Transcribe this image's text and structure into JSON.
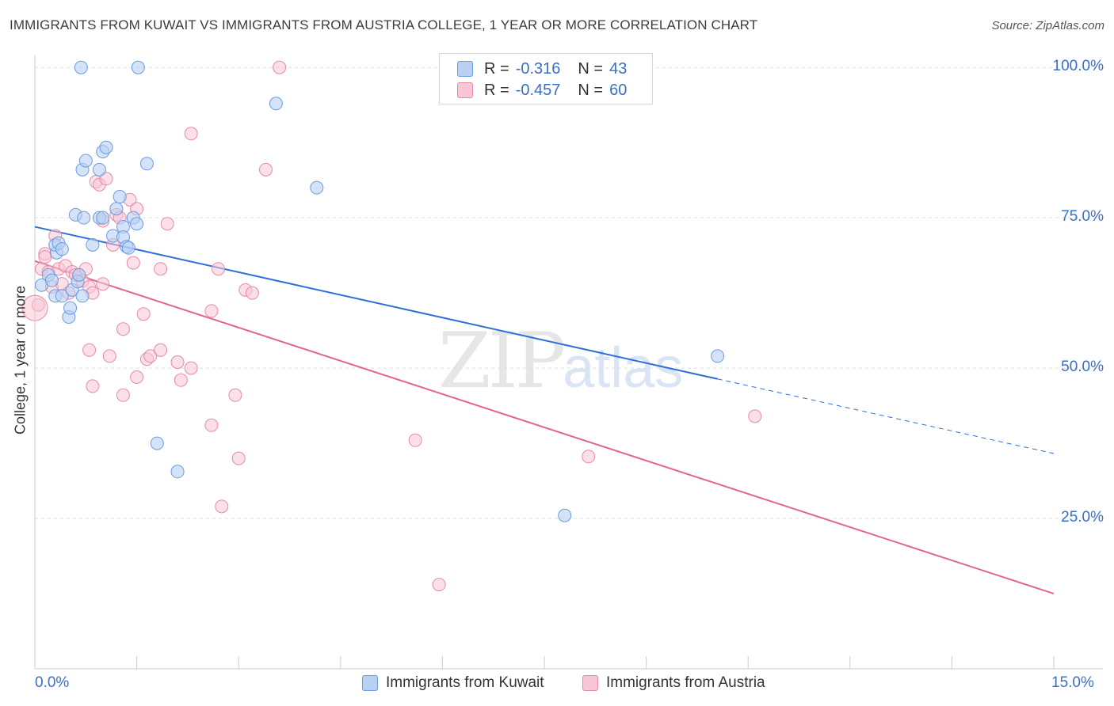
{
  "title": "IMMIGRANTS FROM KUWAIT VS IMMIGRANTS FROM AUSTRIA COLLEGE, 1 YEAR OR MORE CORRELATION CHART",
  "source": "Source: ZipAtlas.com",
  "watermark": {
    "zip": "ZIP",
    "atlas": "atlas"
  },
  "colors": {
    "kuwait_fill": "#b8d1f3",
    "kuwait_stroke": "#6b9be0",
    "kuwait_line": "#2e6fd6",
    "austria_fill": "#f8c6d6",
    "austria_stroke": "#e68aa9",
    "austria_line": "#e0668f",
    "tick_text": "#3a6fc4",
    "grid": "#dddddd"
  },
  "stats": [
    {
      "r_label": "R =",
      "r_value": "-0.316",
      "n_label": "N =",
      "n_value": "43"
    },
    {
      "r_label": "R =",
      "r_value": "-0.457",
      "n_label": "N =",
      "n_value": "60"
    }
  ],
  "legend": [
    "Immigrants from Kuwait",
    "Immigrants from Austria"
  ],
  "chart_data": {
    "type": "scatter",
    "title": "IMMIGRANTS FROM KUWAIT VS IMMIGRANTS FROM AUSTRIA COLLEGE, 1 YEAR OR MORE CORRELATION CHART",
    "xlabel": "",
    "ylabel": "College, 1 year or more",
    "xlim": [
      0,
      15
    ],
    "ylim": [
      0,
      102
    ],
    "x_tick_labels": [
      "0.0%",
      "15.0%"
    ],
    "y_ticks": [
      25,
      50,
      75,
      100
    ],
    "y_tick_labels": [
      "25.0%",
      "50.0%",
      "75.0%",
      "100.0%"
    ],
    "grid": true,
    "legend_position": "bottom-center",
    "series": [
      {
        "name": "Immigrants from Kuwait",
        "trend": {
          "x0": 0,
          "y0": 73.5,
          "x1": 10.05,
          "y1": 48.2,
          "dash_to_x": 15,
          "dash_to_y": 35.8
        },
        "points": [
          [
            0.1,
            63.8
          ],
          [
            0.2,
            65.5
          ],
          [
            0.25,
            64.6
          ],
          [
            0.3,
            62.0
          ],
          [
            0.32,
            69.2
          ],
          [
            0.3,
            70.5
          ],
          [
            0.35,
            70.8
          ],
          [
            0.4,
            69.8
          ],
          [
            0.4,
            62.0
          ],
          [
            0.5,
            58.5
          ],
          [
            0.52,
            60.0
          ],
          [
            0.55,
            63.0
          ],
          [
            0.6,
            75.5
          ],
          [
            0.63,
            64.4
          ],
          [
            0.7,
            62.0
          ],
          [
            0.65,
            65.5
          ],
          [
            0.7,
            83.0
          ],
          [
            0.72,
            75.0
          ],
          [
            0.75,
            84.5
          ],
          [
            0.85,
            70.5
          ],
          [
            0.95,
            83.0
          ],
          [
            0.95,
            75.0
          ],
          [
            1.0,
            86.0
          ],
          [
            1.05,
            86.7
          ],
          [
            1.15,
            72.0
          ],
          [
            1.2,
            76.5
          ],
          [
            1.25,
            78.5
          ],
          [
            1.3,
            73.5
          ],
          [
            1.3,
            71.8
          ],
          [
            1.35,
            70.2
          ],
          [
            1.38,
            70.0
          ],
          [
            1.45,
            75.0
          ],
          [
            1.5,
            74.0
          ],
          [
            1.65,
            84.0
          ],
          [
            1.8,
            37.5
          ],
          [
            2.1,
            32.8
          ],
          [
            0.68,
            100.0
          ],
          [
            1.52,
            100.0
          ],
          [
            3.55,
            94.0
          ],
          [
            4.15,
            80.0
          ],
          [
            10.05,
            52.0
          ],
          [
            7.8,
            25.5
          ],
          [
            1.0,
            75.0
          ]
        ]
      },
      {
        "name": "Immigrants from Austria",
        "trend": {
          "x0": 0,
          "y0": 67.8,
          "x1": 15,
          "y1": 12.5
        },
        "points": [
          [
            0.05,
            60.5
          ],
          [
            0.1,
            66.5
          ],
          [
            0.15,
            69.0
          ],
          [
            0.2,
            66.0
          ],
          [
            0.25,
            63.5
          ],
          [
            0.3,
            72.0
          ],
          [
            0.35,
            66.5
          ],
          [
            0.4,
            64.0
          ],
          [
            0.45,
            67.0
          ],
          [
            0.5,
            62.5
          ],
          [
            0.55,
            66.0
          ],
          [
            0.6,
            65.5
          ],
          [
            0.65,
            65.5
          ],
          [
            0.7,
            64.5
          ],
          [
            0.75,
            66.5
          ],
          [
            0.8,
            63.5
          ],
          [
            0.85,
            62.5
          ],
          [
            0.8,
            53.0
          ],
          [
            0.85,
            47.0
          ],
          [
            0.9,
            81.0
          ],
          [
            0.95,
            80.5
          ],
          [
            1.05,
            81.5
          ],
          [
            1.0,
            74.5
          ],
          [
            1.0,
            64.0
          ],
          [
            1.1,
            52.0
          ],
          [
            1.15,
            70.5
          ],
          [
            1.2,
            75.5
          ],
          [
            1.25,
            75.0
          ],
          [
            1.3,
            56.5
          ],
          [
            1.3,
            45.5
          ],
          [
            1.4,
            78.0
          ],
          [
            1.45,
            67.5
          ],
          [
            1.5,
            76.5
          ],
          [
            1.5,
            48.5
          ],
          [
            1.6,
            59.0
          ],
          [
            1.65,
            51.5
          ],
          [
            1.7,
            52.0
          ],
          [
            1.85,
            66.5
          ],
          [
            1.85,
            53.0
          ],
          [
            1.95,
            74.0
          ],
          [
            2.1,
            51.0
          ],
          [
            2.15,
            48.0
          ],
          [
            2.3,
            50.0
          ],
          [
            2.3,
            89.0
          ],
          [
            2.6,
            59.5
          ],
          [
            2.6,
            40.5
          ],
          [
            2.7,
            66.5
          ],
          [
            2.75,
            27.0
          ],
          [
            2.95,
            45.5
          ],
          [
            3.0,
            35.0
          ],
          [
            3.1,
            63.0
          ],
          [
            3.2,
            62.5
          ],
          [
            3.4,
            83.0
          ],
          [
            3.6,
            100.0
          ],
          [
            5.6,
            38.0
          ],
          [
            5.95,
            14.0
          ],
          [
            8.15,
            35.3
          ],
          [
            10.6,
            42.0
          ],
          [
            0.0,
            60.0
          ],
          [
            0.15,
            68.5
          ]
        ]
      }
    ]
  }
}
